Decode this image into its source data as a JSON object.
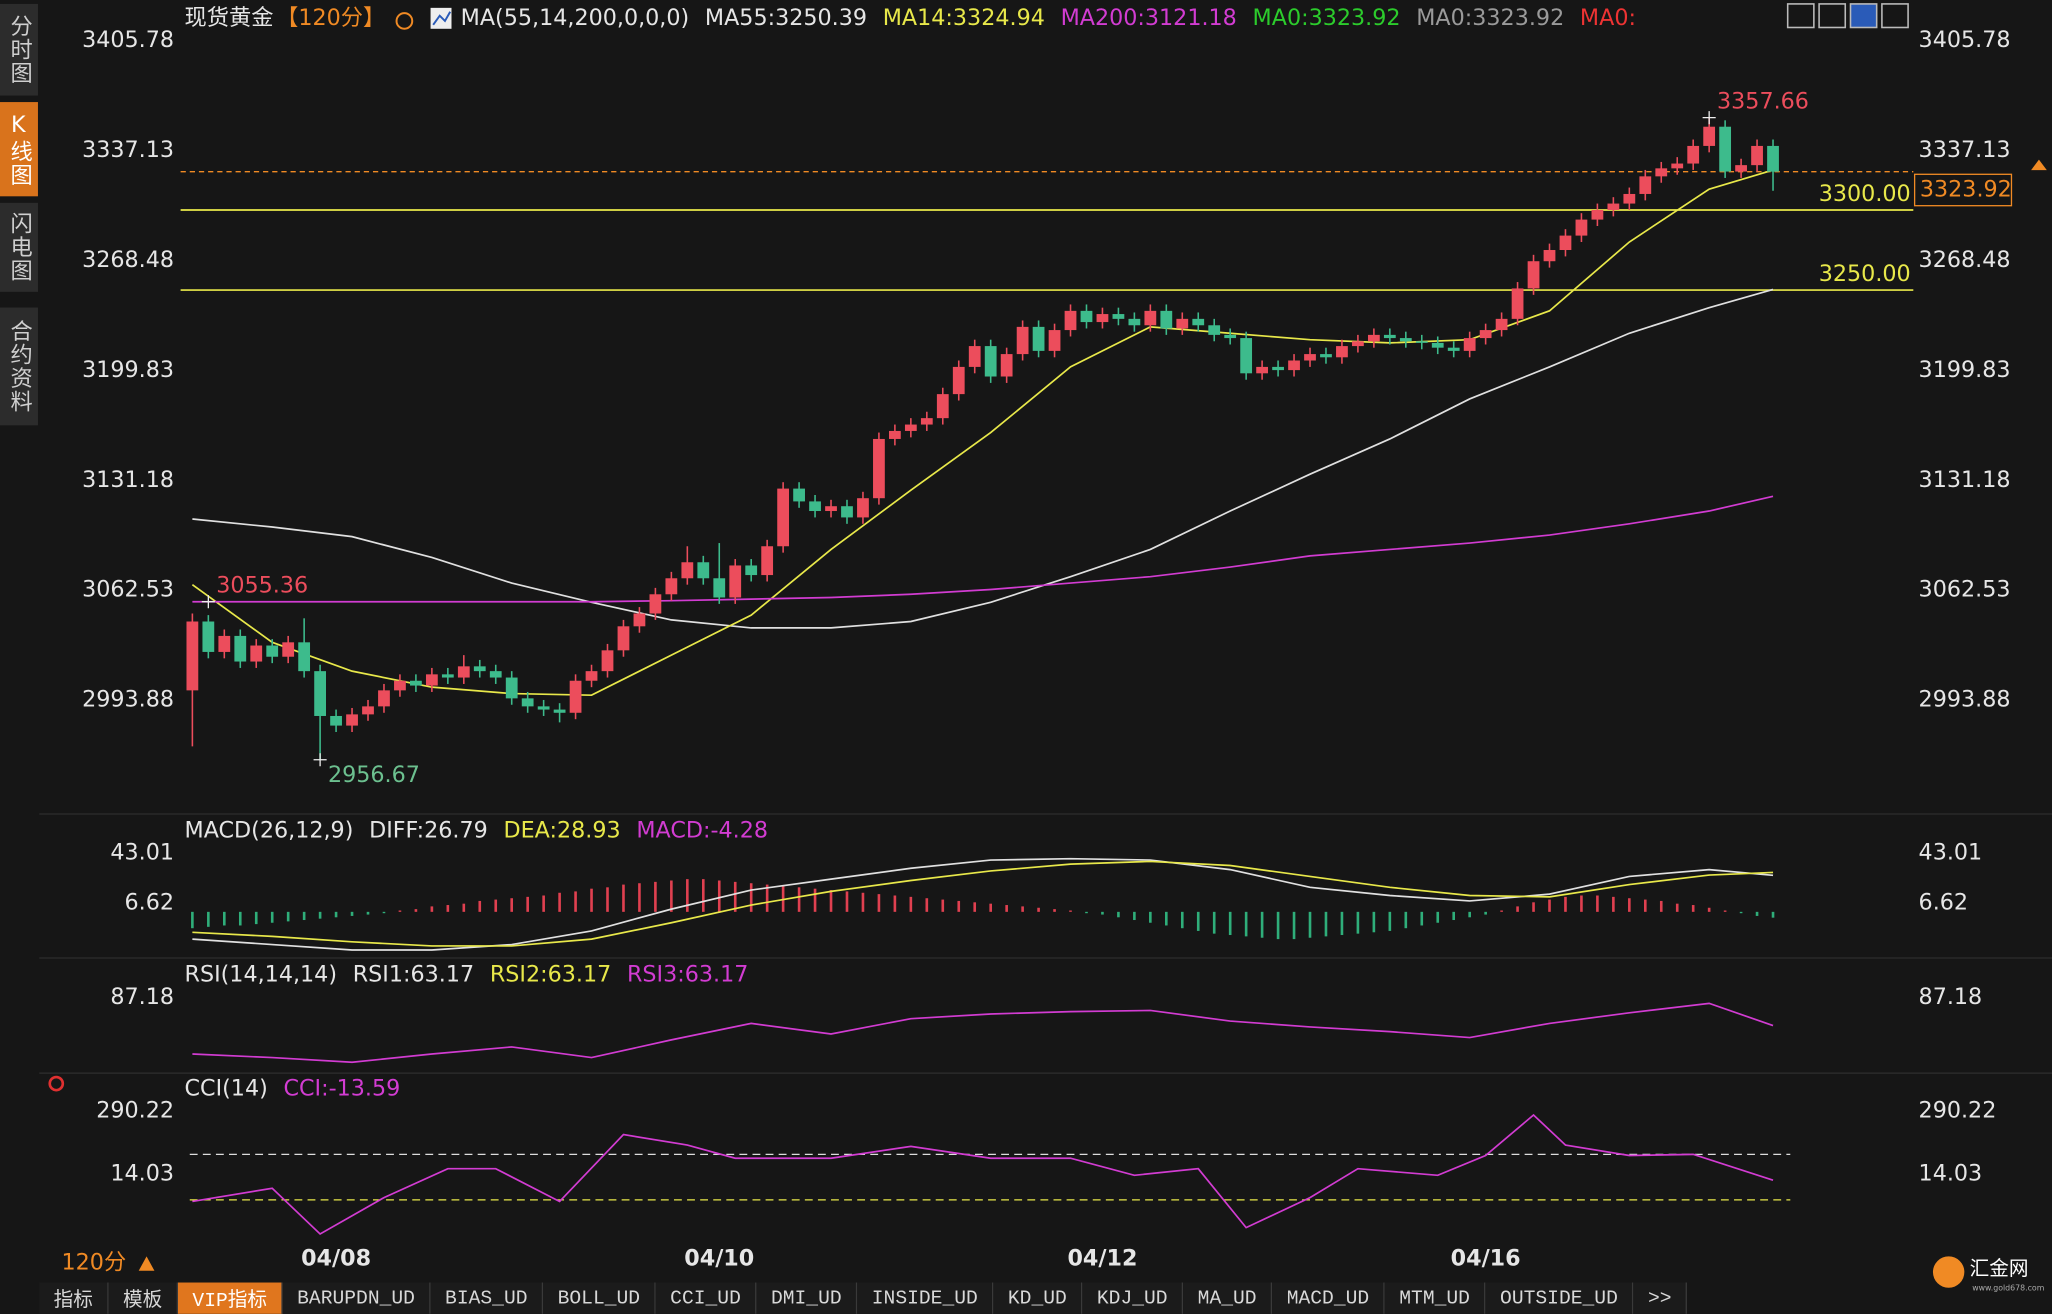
{
  "sidebar": {
    "tabs": [
      "分时图",
      "K线图",
      "闪电图",
      "合约资料"
    ],
    "active": 1
  },
  "chart_data": [
    {
      "type": "candlestick",
      "title": "现货黄金",
      "period": "【120分】",
      "legend": [
        {
          "text": "MA(55,14,200,0,0,0)",
          "color": "#e6e6e6"
        },
        {
          "text": "MA55:3250.39",
          "color": "#e6e6e6"
        },
        {
          "text": "MA14:3324.94",
          "color": "#e8e84a"
        },
        {
          "text": "MA200:3121.18",
          "color": "#d23cd2"
        },
        {
          "text": "MA0:3323.92",
          "color": "#2ccc2c"
        },
        {
          "text": "MA0:3323.92",
          "color": "#9a9a9a"
        },
        {
          "text": "MA0:",
          "color": "#ee3333"
        }
      ],
      "up_color": "#ec4d5c",
      "down_color": "#3dbb8c",
      "open": [
        3000,
        3043,
        3024,
        3034,
        3018,
        3028,
        3021,
        3030,
        3012,
        2984,
        2978,
        2985,
        2990,
        3000,
        3006,
        3003,
        3010,
        3008,
        3015,
        3012,
        3008,
        2995,
        2990,
        2988,
        2986,
        3006,
        3012,
        3025,
        3040,
        3048,
        3060,
        3070,
        3080,
        3070,
        3058,
        3078,
        3072,
        3090,
        3126,
        3118,
        3112,
        3115,
        3108,
        3120,
        3157,
        3162,
        3166,
        3170,
        3185,
        3202,
        3215,
        3196,
        3210,
        3227,
        3212,
        3225,
        3237,
        3230,
        3235,
        3232,
        3228,
        3237,
        3226,
        3232,
        3228,
        3222,
        3220,
        3198,
        3202,
        3200,
        3206,
        3210,
        3208,
        3215,
        3218,
        3222,
        3220,
        3218,
        3217,
        3214,
        3212,
        3220,
        3225,
        3232,
        3251,
        3268,
        3275,
        3284,
        3294,
        3300,
        3304,
        3310,
        3321,
        3326,
        3329,
        3340,
        3352,
        3324,
        3328,
        3340
      ],
      "high": [
        3048,
        3047,
        3038,
        3038,
        3032,
        3032,
        3034,
        3045,
        3016,
        2988,
        2989,
        2994,
        3004,
        3010,
        3010,
        3014,
        3014,
        3022,
        3019,
        3016,
        3012,
        2999,
        2994,
        2992,
        3010,
        3016,
        3029,
        3044,
        3052,
        3064,
        3074,
        3090,
        3084,
        3092,
        3082,
        3082,
        3094,
        3130,
        3130,
        3122,
        3119,
        3119,
        3124,
        3161,
        3166,
        3170,
        3174,
        3189,
        3206,
        3219,
        3219,
        3214,
        3231,
        3231,
        3229,
        3241,
        3241,
        3239,
        3239,
        3236,
        3241,
        3241,
        3236,
        3236,
        3232,
        3226,
        3224,
        3206,
        3206,
        3210,
        3214,
        3214,
        3219,
        3222,
        3226,
        3226,
        3224,
        3222,
        3221,
        3218,
        3224,
        3229,
        3236,
        3255,
        3272,
        3279,
        3288,
        3298,
        3304,
        3308,
        3314,
        3325,
        3330,
        3333,
        3344,
        3357.66,
        3356,
        3332,
        3344,
        3344
      ],
      "low": [
        2965,
        3020,
        3020,
        3014,
        3014,
        3017,
        3017,
        3008,
        2956.67,
        2974,
        2974,
        2981,
        2986,
        2996,
        2999,
        2999,
        3004,
        3004,
        3008,
        3004,
        2991,
        2986,
        2984,
        2980,
        2982,
        3002,
        3008,
        3021,
        3036,
        3044,
        3056,
        3066,
        3066,
        3054,
        3054,
        3068,
        3068,
        3086,
        3114,
        3108,
        3108,
        3104,
        3104,
        3116,
        3153,
        3158,
        3162,
        3166,
        3181,
        3198,
        3192,
        3192,
        3206,
        3208,
        3208,
        3221,
        3226,
        3226,
        3228,
        3224,
        3224,
        3222,
        3222,
        3224,
        3218,
        3216,
        3194,
        3194,
        3196,
        3196,
        3202,
        3204,
        3204,
        3211,
        3214,
        3216,
        3214,
        3213,
        3210,
        3208,
        3208,
        3216,
        3221,
        3228,
        3247,
        3264,
        3271,
        3280,
        3290,
        3296,
        3300,
        3306,
        3317,
        3322,
        3325,
        3336,
        3320,
        3320,
        3324,
        3312
      ],
      "close": [
        3043,
        3024,
        3034,
        3018,
        3028,
        3021,
        3030,
        3012,
        2984,
        2978,
        2985,
        2990,
        3000,
        3006,
        3003,
        3010,
        3008,
        3015,
        3012,
        3008,
        2995,
        2990,
        2988,
        2986,
        3006,
        3012,
        3025,
        3040,
        3048,
        3060,
        3070,
        3080,
        3070,
        3058,
        3078,
        3072,
        3090,
        3126,
        3118,
        3112,
        3115,
        3108,
        3120,
        3157,
        3162,
        3166,
        3170,
        3185,
        3202,
        3215,
        3196,
        3210,
        3227,
        3212,
        3225,
        3237,
        3230,
        3235,
        3232,
        3228,
        3237,
        3226,
        3232,
        3228,
        3222,
        3220,
        3198,
        3202,
        3200,
        3206,
        3210,
        3208,
        3215,
        3218,
        3222,
        3220,
        3218,
        3217,
        3214,
        3212,
        3220,
        3225,
        3232,
        3251,
        3268,
        3275,
        3284,
        3294,
        3300,
        3304,
        3310,
        3321,
        3326,
        3329,
        3340,
        3352,
        3324,
        3328,
        3340,
        3323.92
      ],
      "series": [
        {
          "color": "#e0e0e0",
          "x": [
            0,
            5,
            10,
            15,
            20,
            25,
            30,
            35,
            40,
            45,
            50,
            55,
            60,
            65,
            70,
            75,
            80,
            85,
            90,
            95,
            99
          ],
          "values": [
            3107,
            3102,
            3096,
            3083,
            3067,
            3055,
            3044,
            3039,
            3039,
            3043,
            3055,
            3071,
            3088,
            3112,
            3135,
            3157,
            3182,
            3202,
            3223,
            3239,
            3250.39
          ]
        },
        {
          "color": "#e8e84a",
          "x": [
            0,
            5,
            10,
            15,
            20,
            25,
            30,
            35,
            40,
            45,
            50,
            55,
            60,
            65,
            70,
            75,
            80,
            85,
            90,
            95,
            99
          ],
          "values": [
            3066,
            3030,
            3012,
            3002,
            2998,
            2997,
            3022,
            3047,
            3088,
            3125,
            3161,
            3202,
            3227,
            3223,
            3219,
            3217,
            3219,
            3237,
            3280,
            3313,
            3324.94
          ]
        },
        {
          "color": "#d23cd2",
          "x": [
            0,
            5,
            10,
            15,
            20,
            25,
            30,
            35,
            40,
            45,
            50,
            55,
            60,
            65,
            70,
            75,
            80,
            85,
            90,
            95,
            99
          ],
          "values": [
            3055.36,
            3055.36,
            3055.36,
            3055.36,
            3055.36,
            3055.36,
            3056,
            3057,
            3058,
            3060,
            3063,
            3067,
            3071,
            3077,
            3084,
            3088,
            3092,
            3097,
            3104,
            3112,
            3121.18
          ]
        }
      ],
      "hlines": [
        {
          "value": 3300,
          "label": "3300.00",
          "color": "#e8e84a"
        },
        {
          "value": 3250,
          "label": "3250.00",
          "color": "#e8e84a"
        }
      ],
      "last_price": {
        "value": 3323.92,
        "label": "3323.92",
        "color": "#f08a24"
      },
      "annotations": [
        {
          "text": "3357.66",
          "x": 95,
          "y": 3357.66,
          "color": "#ec4d5c",
          "position": "above"
        },
        {
          "text": "2956.67",
          "x": 8,
          "y": 2956.67,
          "color": "#6cc08f",
          "position": "below"
        },
        {
          "text": "3055.36",
          "x": 1,
          "y": 3055.36,
          "color": "#ec4d5c",
          "position": "above"
        }
      ],
      "ylim": [
        2928.5,
        3410.7
      ],
      "yticks": [
        2993.88,
        3062.53,
        3131.18,
        3199.83,
        3268.48,
        3337.13,
        3405.78
      ],
      "xticks": [
        {
          "value": 9,
          "label": "04/08"
        },
        {
          "value": 33,
          "label": "04/10"
        },
        {
          "value": 57,
          "label": "04/12"
        },
        {
          "value": 81,
          "label": "04/16"
        }
      ]
    },
    {
      "type": "macd",
      "legend": [
        {
          "text": "MACD(26,12,9)",
          "color": "#e6e6e6"
        },
        {
          "text": "DIFF:26.79",
          "color": "#e6e6e6"
        },
        {
          "text": "DEA:28.93",
          "color": "#e8e84a"
        },
        {
          "text": "MACD:-4.28",
          "color": "#d23cd2"
        }
      ],
      "ylim": [
        -30,
        54.5
      ],
      "yticks": [
        6.62,
        43.01
      ],
      "up_color": "#e04050",
      "down_color": "#2fae7a",
      "histogram": [
        -12,
        -11,
        -10,
        -10,
        -9,
        -8,
        -7,
        -6,
        -5,
        -4,
        -3,
        -2,
        -1,
        1,
        2,
        4,
        5,
        6,
        8,
        9,
        10,
        11,
        12,
        14,
        15,
        17,
        18,
        20,
        21,
        22,
        23,
        24,
        24,
        23,
        22,
        21,
        20,
        19,
        18,
        17,
        16,
        15,
        14,
        13,
        12,
        11,
        10,
        9,
        8,
        7,
        6,
        5,
        4,
        3,
        2,
        1,
        -1,
        -2,
        -4,
        -6,
        -8,
        -10,
        -12,
        -14,
        -16,
        -17,
        -18,
        -19,
        -20,
        -20,
        -19,
        -18,
        -17,
        -16,
        -15,
        -14,
        -12,
        -10,
        -8,
        -6,
        -4,
        -2,
        1,
        4,
        7,
        9,
        11,
        12,
        12,
        11,
        10,
        9,
        8,
        6,
        5,
        3,
        1,
        -1,
        -3,
        -4.28
      ],
      "series": [
        {
          "color": "#e0e0e0",
          "x": [
            0,
            5,
            10,
            15,
            20,
            25,
            30,
            35,
            40,
            45,
            50,
            55,
            60,
            65,
            70,
            75,
            80,
            85,
            90,
            95,
            99
          ],
          "values": [
            -20,
            -24,
            -28,
            -28,
            -24,
            -14,
            2,
            16,
            24,
            32,
            38,
            39,
            38,
            31,
            18,
            12,
            8,
            13,
            26,
            31,
            26.79
          ]
        },
        {
          "color": "#e8e84a",
          "x": [
            0,
            5,
            10,
            15,
            20,
            25,
            30,
            35,
            40,
            45,
            50,
            55,
            60,
            65,
            70,
            75,
            80,
            85,
            90,
            95,
            99
          ],
          "values": [
            -15,
            -18,
            -22,
            -25,
            -25,
            -20,
            -8,
            5,
            15,
            23,
            30,
            35,
            37,
            34,
            26,
            18,
            12,
            11,
            20,
            27,
            28.93
          ]
        }
      ]
    },
    {
      "type": "line",
      "legend": [
        {
          "text": "RSI(14,14,14)",
          "color": "#e6e6e6"
        },
        {
          "text": "RSI1:63.17",
          "color": "#e6e6e6"
        },
        {
          "text": "RSI2:63.17",
          "color": "#e8e84a"
        },
        {
          "text": "RSI3:63.17",
          "color": "#d23cd2"
        }
      ],
      "ylim": [
        25,
        95
      ],
      "yticks": [
        87.18
      ],
      "series": [
        {
          "color": "#d23cd2",
          "x": [
            0,
            5,
            10,
            15,
            20,
            25,
            30,
            35,
            40,
            45,
            50,
            55,
            60,
            65,
            70,
            75,
            80,
            85,
            90,
            95,
            99
          ],
          "values": [
            39,
            36,
            32,
            39,
            45,
            36,
            51,
            65,
            56,
            69,
            73,
            75,
            76,
            67,
            62,
            58,
            53,
            65,
            74,
            82,
            63.17
          ]
        }
      ]
    },
    {
      "type": "line",
      "legend": [
        {
          "text": "CCI(14)",
          "color": "#e6e6e6"
        },
        {
          "text": "CCI:-13.59",
          "color": "#d23cd2"
        }
      ],
      "ylim": [
        -262,
        342
      ],
      "yticks": [
        14.03,
        290.22
      ],
      "hlines": [
        {
          "value": 100,
          "color": "#dddddd"
        },
        {
          "value": -100,
          "color": "#e8e84a"
        }
      ],
      "series": [
        {
          "color": "#d23cd2",
          "x": [
            0,
            5,
            8,
            12,
            16,
            19,
            23,
            27,
            31,
            34,
            40,
            45,
            50,
            55,
            59,
            63,
            66,
            70,
            73,
            78,
            81,
            84,
            86,
            90,
            94,
            99
          ],
          "values": [
            -107,
            -49,
            -250,
            -90,
            37,
            37,
            -107,
            187,
            141,
            83,
            83,
            135,
            83,
            83,
            8,
            37,
            -222,
            -90,
            37,
            8,
            95,
            273,
            141,
            95,
            100,
            -13.59
          ]
        }
      ]
    }
  ],
  "footer": {
    "period": "120分",
    "tabs": [
      "指标",
      "模板",
      "VIP指标",
      "BARUPDN_UD",
      "BIAS_UD",
      "BOLL_UD",
      "CCI_UD",
      "DMI_UD",
      "INSIDE_UD",
      "KD_UD",
      "KDJ_UD",
      "MA_UD",
      "MACD_UD",
      "MTM_UD",
      "OUTSIDE_UD",
      ">>"
    ],
    "active": 2,
    "logo": "汇金网",
    "logo_url": "www.gold678.com"
  }
}
